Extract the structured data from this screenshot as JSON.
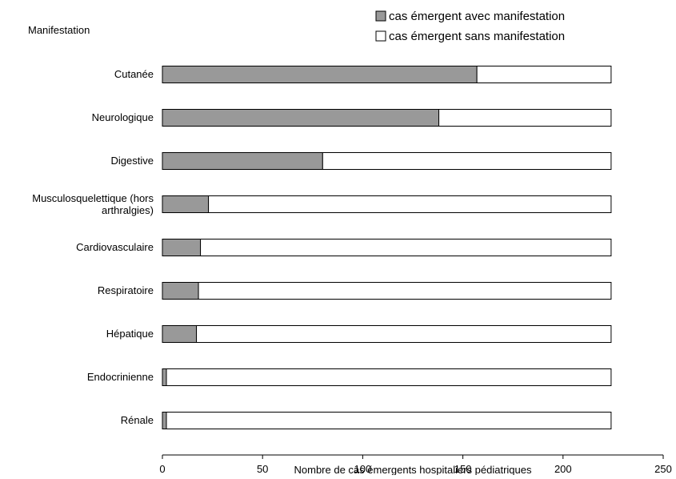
{
  "chart_data": {
    "type": "bar",
    "orientation": "horizontal",
    "stacked": true,
    "title": "",
    "ylabel": "Manifestation",
    "xlabel": "Nombre de cas émergents hospitaliers pédiatriques",
    "xlim": [
      0,
      250
    ],
    "xticks": [
      "0",
      "50",
      "100",
      "150",
      "200",
      "250"
    ],
    "grid": false,
    "legend_position": "top-right",
    "categories": [
      "Cutanée",
      "Neurologique",
      "Digestive",
      "Musculosquelettique (hors arthralgies)",
      "Cardiovasculaire",
      "Respiratoire",
      "Hépatique",
      "Endocrinienne",
      "Rénale"
    ],
    "series": [
      {
        "name": "cas émergent avec manifestation",
        "color": "#999999",
        "values": [
          157,
          138,
          80,
          23,
          19,
          18,
          17,
          2,
          2
        ]
      },
      {
        "name": "cas émergent sans manifestation",
        "color": "#ffffff",
        "values": [
          67,
          86,
          144,
          201,
          205,
          206,
          207,
          222,
          222
        ]
      }
    ]
  }
}
